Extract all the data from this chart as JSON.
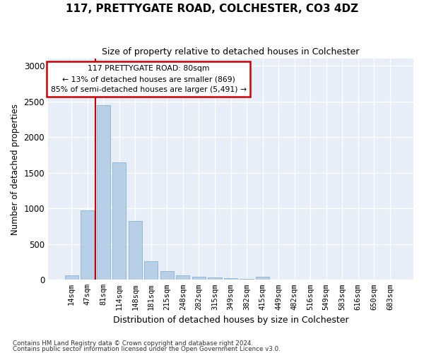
{
  "title": "117, PRETTYGATE ROAD, COLCHESTER, CO3 4DZ",
  "subtitle": "Size of property relative to detached houses in Colchester",
  "xlabel": "Distribution of detached houses by size in Colchester",
  "ylabel": "Number of detached properties",
  "categories": [
    "14sqm",
    "47sqm",
    "81sqm",
    "114sqm",
    "148sqm",
    "181sqm",
    "215sqm",
    "248sqm",
    "282sqm",
    "315sqm",
    "349sqm",
    "382sqm",
    "415sqm",
    "449sqm",
    "482sqm",
    "516sqm",
    "549sqm",
    "583sqm",
    "616sqm",
    "650sqm",
    "683sqm"
  ],
  "values": [
    60,
    970,
    2450,
    1650,
    820,
    260,
    120,
    60,
    45,
    35,
    20,
    10,
    40,
    5,
    0,
    0,
    0,
    0,
    0,
    0,
    0
  ],
  "bar_color": "#b8cfe8",
  "bar_edge_color": "#7aaac8",
  "fig_bg_color": "#ffffff",
  "axes_bg_color": "#e8eef8",
  "grid_color": "#ffffff",
  "vline_color": "#cc0000",
  "vline_x_index": 2,
  "annotation_text": "117 PRETTYGATE ROAD: 80sqm\n← 13% of detached houses are smaller (869)\n85% of semi-detached houses are larger (5,491) →",
  "annotation_box_edgecolor": "#cc0000",
  "ylim": [
    0,
    3100
  ],
  "yticks": [
    0,
    500,
    1000,
    1500,
    2000,
    2500,
    3000
  ],
  "footnote1": "Contains HM Land Registry data © Crown copyright and database right 2024.",
  "footnote2": "Contains public sector information licensed under the Open Government Licence v3.0."
}
